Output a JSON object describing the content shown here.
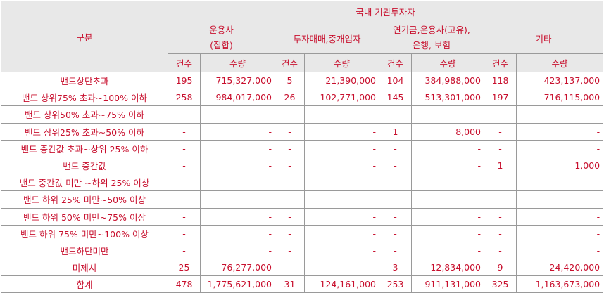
{
  "header": {
    "category": "구분",
    "domestic_institutional": "국내 기관투자자",
    "groups": [
      {
        "line1": "운용사",
        "line2": "(집합)"
      },
      {
        "line1": "투자매매,중개업자",
        "line2": ""
      },
      {
        "line1": "연기금,운용사(고유),",
        "line2": "은행, 보험"
      },
      {
        "line1": "기타",
        "line2": ""
      }
    ],
    "count_label": "건수",
    "amount_label": "수량"
  },
  "rows": [
    {
      "label": "밴드상단초과",
      "cells": [
        "195",
        "715,327,000",
        "5",
        "21,390,000",
        "104",
        "384,988,000",
        "118",
        "423,137,000"
      ]
    },
    {
      "label": "밴드 상위75% 초과~100% 이하",
      "cells": [
        "258",
        "984,017,000",
        "26",
        "102,771,000",
        "145",
        "513,301,000",
        "197",
        "716,115,000"
      ]
    },
    {
      "label": "밴드 상위50% 초과~75% 이하",
      "cells": [
        "-",
        "-",
        "-",
        "-",
        "-",
        "-",
        "-",
        "-"
      ]
    },
    {
      "label": "밴드 상위25% 초과~50% 이하",
      "cells": [
        "-",
        "-",
        "-",
        "-",
        "1",
        "8,000",
        "-",
        "-"
      ]
    },
    {
      "label": "밴드 중간값 초과~상위 25% 이하",
      "cells": [
        "-",
        "-",
        "-",
        "-",
        "-",
        "-",
        "-",
        "-"
      ]
    },
    {
      "label": "밴드 중간값",
      "cells": [
        "-",
        "-",
        "-",
        "-",
        "-",
        "-",
        "1",
        "1,000"
      ]
    },
    {
      "label": "밴드 중간값 미만 ~하위 25% 이상",
      "cells": [
        "-",
        "-",
        "-",
        "-",
        "-",
        "-",
        "-",
        "-"
      ]
    },
    {
      "label": "밴드 하위 25% 미만~50% 이상",
      "cells": [
        "-",
        "-",
        "-",
        "-",
        "-",
        "-",
        "-",
        "-"
      ]
    },
    {
      "label": "밴드 하위 50% 미만~75% 이상",
      "cells": [
        "-",
        "-",
        "-",
        "-",
        "-",
        "-",
        "-",
        "-"
      ]
    },
    {
      "label": "밴드 하위 75% 미만~100% 이상",
      "cells": [
        "-",
        "-",
        "-",
        "-",
        "-",
        "-",
        "-",
        "-"
      ]
    },
    {
      "label": "밴드하단미만",
      "cells": [
        "-",
        "-",
        "-",
        "-",
        "-",
        "-",
        "-",
        "-"
      ]
    },
    {
      "label": "미제시",
      "cells": [
        "25",
        "76,277,000",
        "-",
        "-",
        "3",
        "12,834,000",
        "9",
        "24,420,000"
      ]
    },
    {
      "label": "합계",
      "cells": [
        "478",
        "1,775,621,000",
        "31",
        "124,161,000",
        "253",
        "911,131,000",
        "325",
        "1,163,673,000"
      ]
    }
  ],
  "colors": {
    "text": "#c8102e",
    "header_bg": "#e8e8e8",
    "border": "#9a9a9a"
  }
}
